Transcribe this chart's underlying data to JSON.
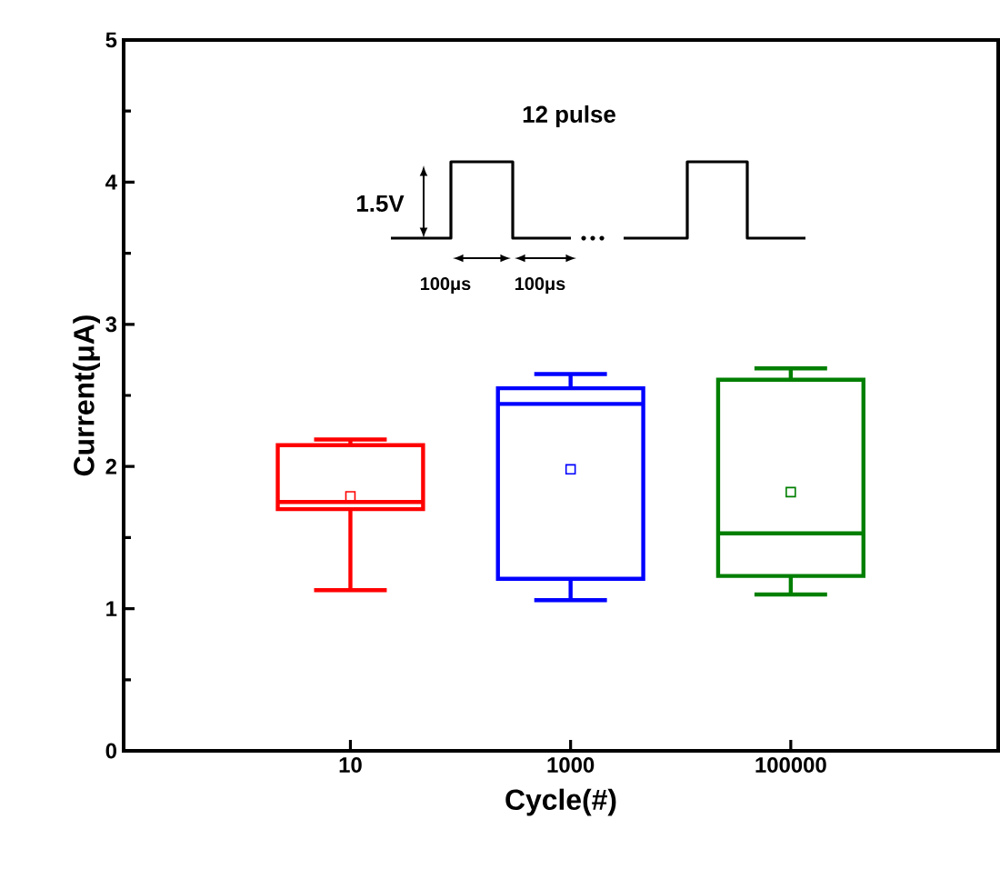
{
  "chart_data": {
    "type": "box",
    "xlabel": "Cycle(#)",
    "ylabel": "Current(μA)",
    "categories": [
      "10",
      "1000",
      "100000"
    ],
    "colors": [
      "#ff0000",
      "#0000ff",
      "#007f00"
    ],
    "boxes": [
      {
        "low": 1.13,
        "q1": 1.7,
        "median": 1.75,
        "q3": 2.15,
        "high": 2.19,
        "mean": 1.79
      },
      {
        "low": 1.06,
        "q1": 1.21,
        "median": 2.44,
        "q3": 2.55,
        "high": 2.65,
        "mean": 1.98
      },
      {
        "low": 1.1,
        "q1": 1.23,
        "median": 1.53,
        "q3": 2.61,
        "high": 2.69,
        "mean": 1.82
      }
    ],
    "marker": "square",
    "ylim": [
      0,
      5
    ],
    "yticks": [
      0,
      1,
      2,
      3,
      4,
      5
    ],
    "grid": false,
    "annotations": [
      "12 pulse",
      "1.5V",
      "100μs",
      "100μs"
    ]
  }
}
